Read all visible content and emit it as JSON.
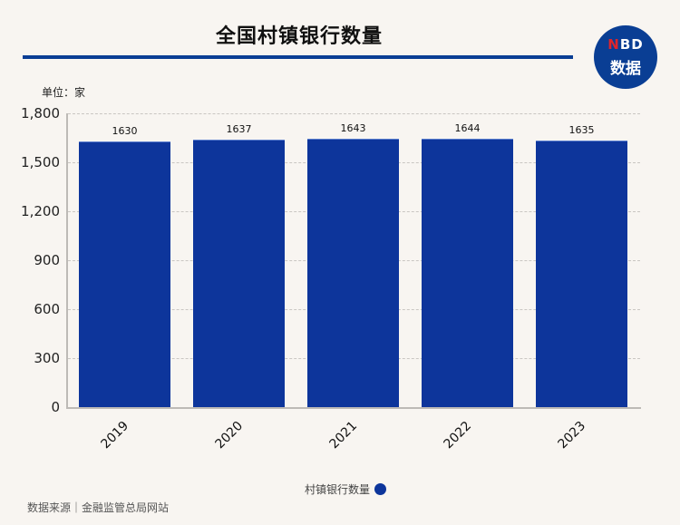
{
  "header": {
    "title": "全国村镇银行数量",
    "logo_top": "NBD",
    "logo_top_accent": "N",
    "logo_top_rest": "BD",
    "logo_bottom": "数据",
    "brand_color": "#0a3e94",
    "accent_color": "#e0252a"
  },
  "unit_label": "单位：家",
  "legend": {
    "label": "村镇银行数量",
    "color": "#0d359b"
  },
  "footer": {
    "source": "数据来源｜金融监管总局网站"
  },
  "chart_data": {
    "type": "bar",
    "title": "全国村镇银行数量",
    "xlabel": "",
    "ylabel": "单位：家",
    "categories": [
      "2019",
      "2020",
      "2021",
      "2022",
      "2023"
    ],
    "series": [
      {
        "name": "村镇银行数量",
        "values": [
          1630,
          1637,
          1643,
          1644,
          1635
        ],
        "color": "#0d359b"
      }
    ],
    "data_labels": [
      "1630",
      "1637",
      "1643",
      "1644",
      "1635"
    ],
    "ylim": [
      0,
      1800
    ],
    "yticks": [
      "0",
      "300",
      "600",
      "900",
      "1,200",
      "1,500",
      "1,800"
    ],
    "ytick_values": [
      0,
      300,
      600,
      900,
      1200,
      1500,
      1800
    ],
    "grid": true,
    "legend_position": "bottom-center"
  }
}
